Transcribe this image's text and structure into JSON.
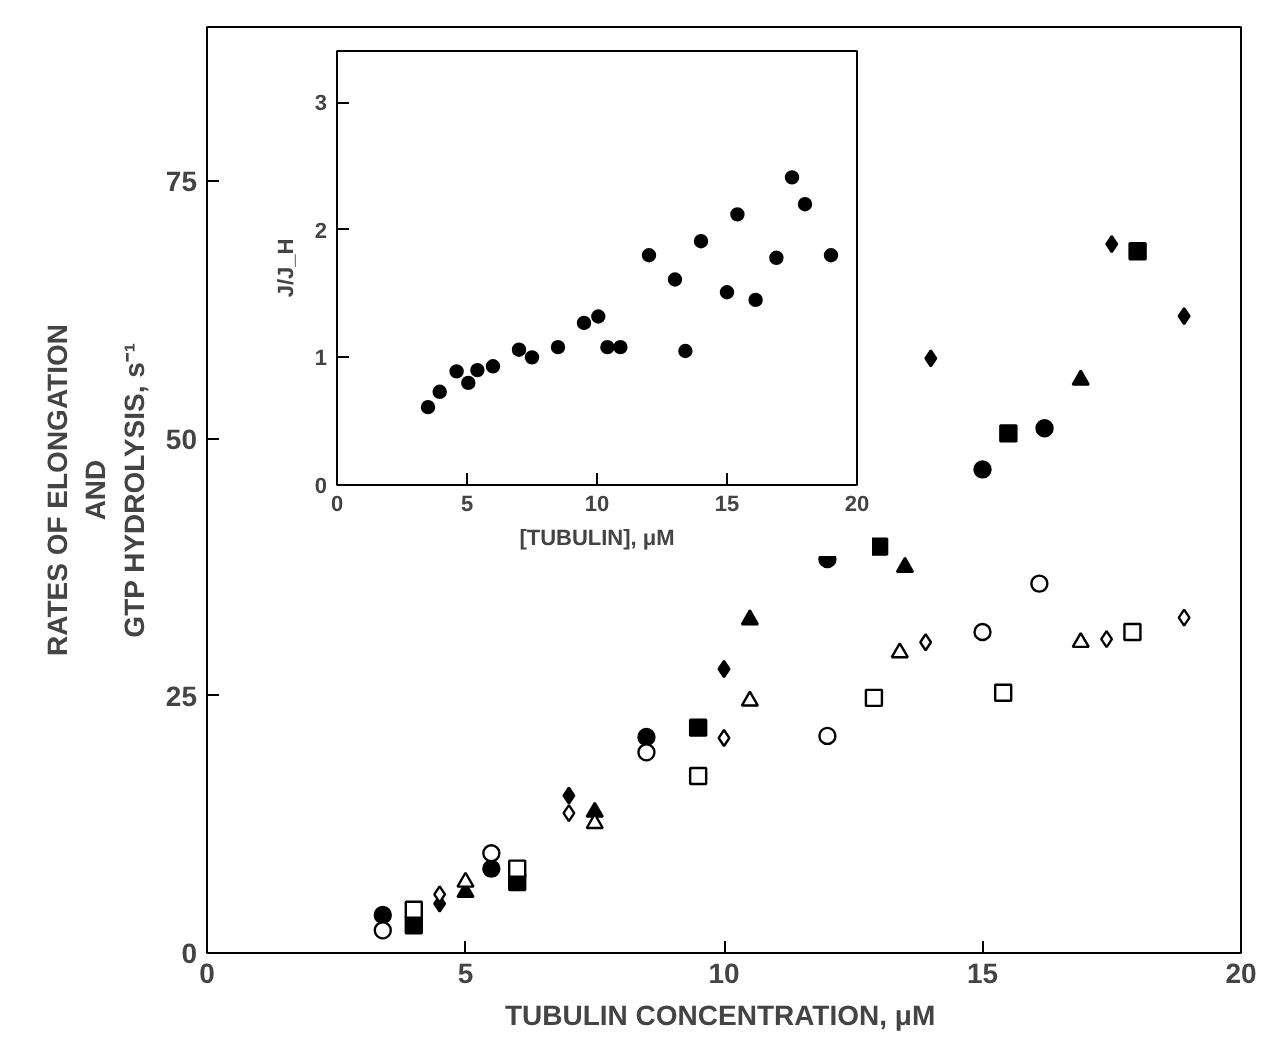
{
  "chart_data": [
    {
      "type": "scatter",
      "xlabel": "TUBULIN  CONCENTRATION, μM",
      "ylabel": "RATES OF ELONGATION\nAND\nGTP HYDROLYSIS, s⁻¹",
      "xlim": [
        0,
        20
      ],
      "ylim": [
        0,
        90
      ],
      "xticks": [
        0,
        5,
        10,
        15,
        20
      ],
      "yticks": [
        0,
        25,
        50,
        75
      ],
      "grid": false,
      "series": [
        {
          "marker": "circle",
          "color": "#000000",
          "x": [
            3.4,
            5.5,
            8.5,
            12,
            15,
            16.2
          ],
          "values": [
            3.7,
            8.2,
            21,
            38.3,
            47,
            51
          ]
        },
        {
          "marker": "square",
          "color": "#000000",
          "x": [
            4,
            6,
            9.5,
            13,
            15.5,
            18
          ],
          "values": [
            2.7,
            6.9,
            21.9,
            39.5,
            50.5,
            68.2
          ]
        },
        {
          "marker": "triangle",
          "color": "#000000",
          "x": [
            5,
            7.5,
            10.5,
            13.5,
            16.9
          ],
          "values": [
            5.9,
            13.7,
            32.4,
            37.5,
            55.7
          ]
        },
        {
          "marker": "diamond",
          "color": "#000000",
          "x": [
            4.5,
            7,
            10,
            14,
            17.5,
            18.9
          ],
          "values": [
            4.8,
            15.3,
            27.6,
            57.8,
            68.9,
            61.9
          ]
        },
        {
          "marker": "circle",
          "color": "#ffffff",
          "x": [
            3.4,
            5.5,
            8.5,
            12,
            15,
            16.1
          ],
          "values": [
            2.2,
            9.7,
            19.5,
            21.1,
            31.2,
            35.9
          ]
        },
        {
          "marker": "square",
          "color": "#ffffff",
          "x": [
            4,
            6,
            9.5,
            12.9,
            15.4,
            17.9
          ],
          "values": [
            4.2,
            8.2,
            17.2,
            24.8,
            25.3,
            31.2
          ]
        },
        {
          "marker": "triangle",
          "color": "#ffffff",
          "x": [
            5,
            7.5,
            10.5,
            13.4,
            16.9
          ],
          "values": [
            6.9,
            12.6,
            24.5,
            29.2,
            30.2
          ]
        },
        {
          "marker": "diamond",
          "color": "#ffffff",
          "x": [
            4.5,
            7,
            10,
            13.9,
            17.4,
            18.9
          ],
          "values": [
            5.7,
            13.6,
            20.9,
            30.2,
            30.5,
            32.6
          ]
        }
      ]
    },
    {
      "type": "scatter",
      "xlabel": "[TUBULIN], μM",
      "ylabel": "J/J_H",
      "xlim": [
        0,
        20
      ],
      "ylim": [
        0,
        3.4
      ],
      "xticks": [
        0,
        5,
        10,
        15,
        20
      ],
      "yticks": [
        0,
        1,
        2,
        3
      ],
      "grid": false,
      "series": [
        {
          "marker": "circle",
          "color": "#000000",
          "x": [
            3.5,
            3.95,
            4.6,
            5.05,
            5.4,
            6,
            7,
            7.5,
            8.5,
            9.5,
            10.05,
            10.4,
            10.9,
            12,
            13,
            13.4,
            14,
            15,
            15.4,
            16.1,
            16.9,
            17.5,
            18,
            19
          ],
          "values": [
            0.61,
            0.73,
            0.89,
            0.8,
            0.9,
            0.93,
            1.06,
            1.0,
            1.08,
            1.27,
            1.32,
            1.08,
            1.08,
            1.8,
            1.61,
            1.05,
            1.91,
            1.51,
            2.12,
            1.45,
            1.78,
            2.41,
            2.2,
            1.8
          ]
        }
      ]
    }
  ]
}
